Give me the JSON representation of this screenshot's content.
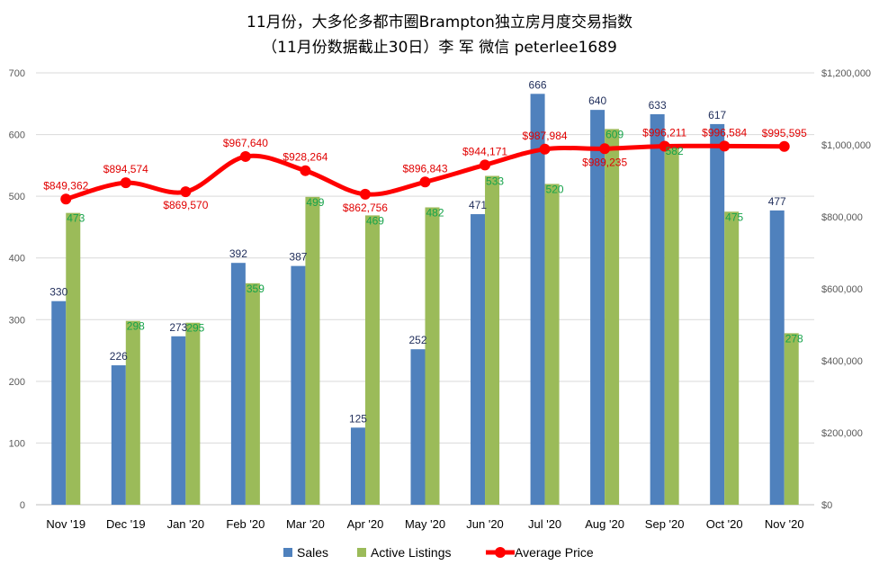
{
  "chart_data": {
    "type": "bar",
    "title": "11月份，大多伦多都市圈Brampton独立房月度交易指数",
    "subtitle": "（11月份数据截止30日）李 军  微信  peterlee1689",
    "categories": [
      "Nov '19",
      "Dec '19",
      "Jan '20",
      "Feb '20",
      "Mar '20",
      "Apr '20",
      "May '20",
      "Jun '20",
      "Jul '20",
      "Aug '20",
      "Sep '20",
      "Oct '20",
      "Nov '20"
    ],
    "series": [
      {
        "name": "Sales",
        "type": "bar",
        "axis": "left",
        "color": "#4F81BD",
        "label_color": "#1F2D5A",
        "values": [
          330,
          226,
          273,
          392,
          387,
          125,
          252,
          471,
          666,
          640,
          633,
          617,
          477
        ],
        "labels": [
          "330",
          "226",
          "273",
          "392",
          "387",
          "125",
          "252",
          "471",
          "666",
          "640",
          "633",
          "617",
          "477"
        ]
      },
      {
        "name": "Active Listings",
        "type": "bar",
        "axis": "left",
        "color": "#9BBB59",
        "label_color": "#16A34A",
        "values": [
          473,
          298,
          295,
          359,
          499,
          469,
          482,
          533,
          520,
          609,
          582,
          475,
          278
        ],
        "labels": [
          "473",
          "298",
          "295",
          "359",
          "499",
          "469",
          "482",
          "533",
          "520",
          "609",
          "582",
          "475",
          "278"
        ]
      },
      {
        "name": "Average Price",
        "type": "line",
        "axis": "right",
        "color": "#FF0000",
        "label_color": "#E00000",
        "values": [
          849362,
          894574,
          869570,
          967640,
          928264,
          862756,
          896843,
          944171,
          987984,
          989235,
          996211,
          996584,
          995595
        ],
        "labels": [
          "$849,362",
          "$894,574",
          "$869,570",
          "$967,640",
          "$928,264",
          "$862,756",
          "$896,843",
          "$944,171",
          "$987,984",
          "$989,235",
          "$996,211",
          "$996,584",
          "$995,595"
        ]
      }
    ],
    "y_left": {
      "min": 0,
      "max": 700,
      "ticks": [
        "0",
        "100",
        "200",
        "300",
        "400",
        "500",
        "600",
        "700"
      ]
    },
    "y_right": {
      "min": 0,
      "max": 1200000,
      "ticks": [
        "$0",
        "$200,000",
        "$400,000",
        "$600,000",
        "$800,000",
        "$1,000,000",
        "$1,200,000"
      ]
    },
    "grid": true,
    "legend_position": "bottom",
    "legend": [
      "Sales",
      "Active Listings",
      "Average Price"
    ]
  }
}
